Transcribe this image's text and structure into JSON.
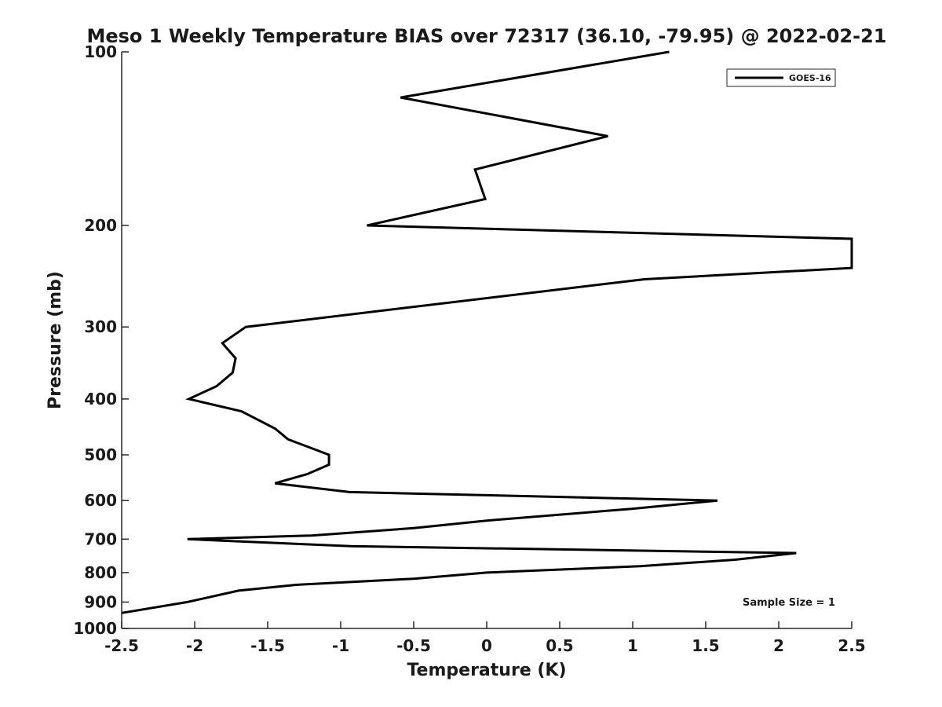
{
  "chart_data": {
    "type": "line",
    "title": "Meso 1 Weekly Temperature BIAS over 72317 (36.10, -79.95) @ 2022-02-21",
    "xlabel": "Temperature (K)",
    "ylabel": "Pressure (mb)",
    "xlim": [
      -2.5,
      2.5
    ],
    "ylim": [
      100,
      1000
    ],
    "y_scale": "log",
    "y_reversed": true,
    "grid": false,
    "legend_position": "top-right",
    "x_ticks": [
      -2.5,
      -2,
      -1.5,
      -1,
      -0.5,
      0,
      0.5,
      1,
      1.5,
      2,
      2.5
    ],
    "x_tick_labels": [
      "-2.5",
      "-2",
      "-1.5",
      "-1",
      "-0.5",
      "0",
      "0.5",
      "1",
      "1.5",
      "2",
      "2.5"
    ],
    "y_ticks": [
      100,
      200,
      300,
      400,
      500,
      600,
      700,
      800,
      900,
      1000
    ],
    "y_tick_labels": [
      "100",
      "200",
      "300",
      "400",
      "500",
      "600",
      "700",
      "800",
      "900",
      "1000"
    ],
    "annotation": "Sample Size = 1",
    "series": [
      {
        "name": "GOES-16",
        "color": "#000000",
        "points": [
          [
            1.25,
            100
          ],
          [
            -0.59,
            120
          ],
          [
            0.83,
            140
          ],
          [
            -0.08,
            160
          ],
          [
            -0.01,
            180
          ],
          [
            -0.82,
            200
          ],
          [
            2.5,
            211
          ],
          [
            2.5,
            237
          ],
          [
            1.08,
            248
          ],
          [
            -1.65,
            300
          ],
          [
            -1.81,
            320
          ],
          [
            -1.72,
            340
          ],
          [
            -1.74,
            360
          ],
          [
            -1.85,
            380
          ],
          [
            -2.04,
            400
          ],
          [
            -1.68,
            420
          ],
          [
            -1.45,
            450
          ],
          [
            -1.36,
            470
          ],
          [
            -1.17,
            490
          ],
          [
            -1.08,
            500
          ],
          [
            -1.08,
            520
          ],
          [
            -1.23,
            540
          ],
          [
            -1.45,
            560
          ],
          [
            -0.94,
            580
          ],
          [
            1.58,
            600
          ],
          [
            1.0,
            620
          ],
          [
            0.0,
            650
          ],
          [
            -0.5,
            670
          ],
          [
            -1.2,
            690
          ],
          [
            -2.05,
            700
          ],
          [
            -0.93,
            720
          ],
          [
            2.12,
            740
          ],
          [
            1.7,
            760
          ],
          [
            1.05,
            780
          ],
          [
            0.0,
            800
          ],
          [
            -0.5,
            820
          ],
          [
            -1.3,
            840
          ],
          [
            -1.7,
            860
          ],
          [
            -2.05,
            900
          ],
          [
            -2.5,
            940
          ]
        ]
      }
    ]
  }
}
